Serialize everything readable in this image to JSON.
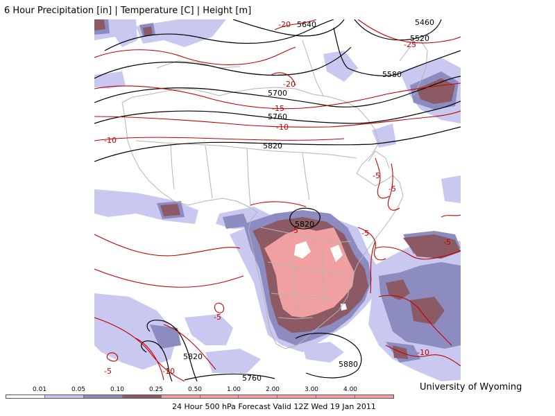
{
  "title": "6 Hour Precipitation [in] | Temperature [C] | Height [m]",
  "credit": "University of Wyoming",
  "footer": "24 Hour 500 hPa Forecast Valid 12Z Wed 19 Jan 2011",
  "colors": {
    "precip_light": "#c8c8f0",
    "precip_mid": "#8c8cc0",
    "precip_heavy": "#8c5a64",
    "precip_very_heavy": "#f0a0a0",
    "height_contour": "#000000",
    "temperature_contour": "#c00000",
    "borders": "#b4b4b4"
  },
  "scale": {
    "ticks": [
      "0.01",
      "0.05",
      "0.10",
      "0.25",
      "0.50",
      "1.00",
      "2.00",
      "3.00",
      "4.00"
    ],
    "swatches": [
      "#ffffff",
      "#c8c8f0",
      "#8c8cc0",
      "#8c5a64",
      "#f0a0a0",
      "#f0a0a0",
      "#f0a0a0",
      "#f0a0a0",
      "#f0a0a0",
      "#f0a0a0"
    ]
  },
  "height_labels": [
    "5460",
    "5520",
    "5580",
    "5640",
    "5700",
    "5760",
    "5820",
    "5820",
    "5820",
    "5880",
    "5760"
  ],
  "temperature_labels": [
    "-25",
    "-20",
    "-20",
    "-15",
    "-10",
    "-10",
    "-5",
    "-5",
    "-5",
    "-5",
    "-5",
    "-5",
    "-5",
    "-10",
    "-10"
  ]
}
